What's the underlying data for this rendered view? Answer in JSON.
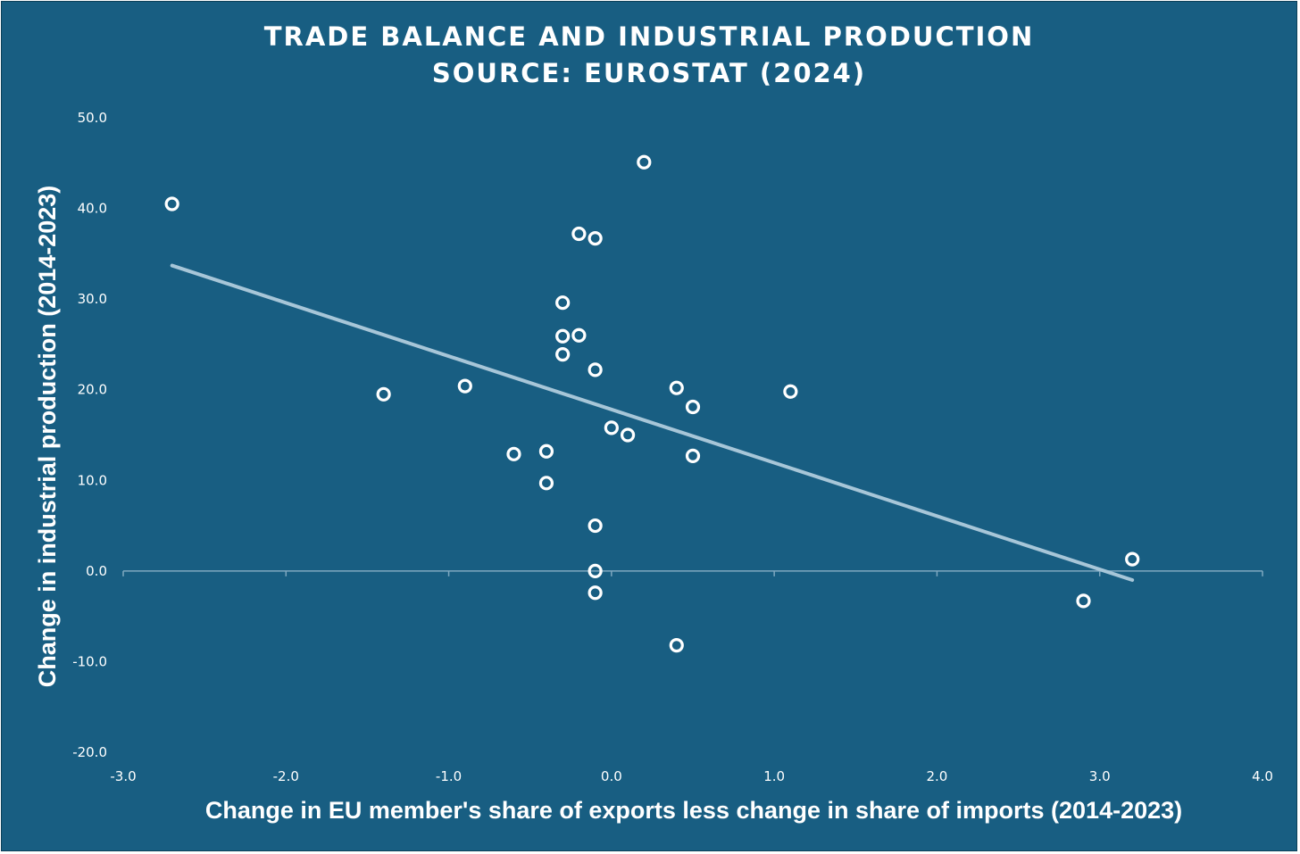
{
  "chart_data": {
    "type": "scatter",
    "title": "TRADE BALANCE AND INDUSTRIAL PRODUCTION",
    "subtitle": "SOURCE: EUROSTAT (2024)",
    "xlabel": "Change in EU member's share of exports less change in share of imports (2014-2023)",
    "ylabel": "Change in industrial production (2014-2023)",
    "xlim": [
      -3.0,
      4.0
    ],
    "ylim": [
      -20.0,
      50.0
    ],
    "x_ticks": [
      "-3.0",
      "-2.0",
      "-1.0",
      "0.0",
      "1.0",
      "2.0",
      "3.0",
      "4.0"
    ],
    "y_ticks": [
      "50.0",
      "40.0",
      "30.0",
      "20.0",
      "10.0",
      "0.0",
      "-10.0",
      "-20.0"
    ],
    "grid": false,
    "legend": "none",
    "points": [
      {
        "x": -2.7,
        "y": 40.5
      },
      {
        "x": -1.4,
        "y": 19.5
      },
      {
        "x": -0.9,
        "y": 20.4
      },
      {
        "x": -0.6,
        "y": 12.9
      },
      {
        "x": -0.4,
        "y": 13.2
      },
      {
        "x": -0.4,
        "y": 9.7
      },
      {
        "x": -0.3,
        "y": 29.6
      },
      {
        "x": -0.3,
        "y": 25.9
      },
      {
        "x": -0.3,
        "y": 23.9
      },
      {
        "x": -0.2,
        "y": 37.2
      },
      {
        "x": -0.2,
        "y": 26.0
      },
      {
        "x": -0.1,
        "y": 36.7
      },
      {
        "x": -0.1,
        "y": 22.2
      },
      {
        "x": -0.1,
        "y": 5.0
      },
      {
        "x": -0.1,
        "y": 0.0
      },
      {
        "x": -0.1,
        "y": -2.4
      },
      {
        "x": 0.0,
        "y": 15.8
      },
      {
        "x": 0.1,
        "y": 15.0
      },
      {
        "x": 0.2,
        "y": 45.1
      },
      {
        "x": 0.4,
        "y": 20.2
      },
      {
        "x": 0.4,
        "y": -8.2
      },
      {
        "x": 0.5,
        "y": 18.1
      },
      {
        "x": 0.5,
        "y": 12.7
      },
      {
        "x": 1.1,
        "y": 19.8
      },
      {
        "x": 2.9,
        "y": -3.3
      },
      {
        "x": 3.2,
        "y": 1.3
      }
    ],
    "trendline": {
      "type": "linear",
      "from": {
        "x": -2.7,
        "y": 33.7
      },
      "to": {
        "x": 3.2,
        "y": -1.0
      }
    },
    "colors": {
      "background": "#185e82",
      "marker": "#ffffff",
      "trendline": "#a7c6d8",
      "axis": "#7fa8c0"
    }
  }
}
